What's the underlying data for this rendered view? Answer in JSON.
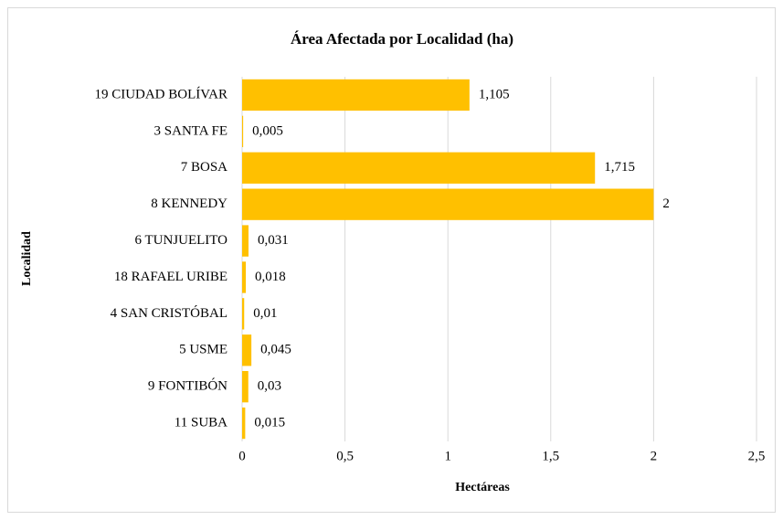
{
  "chart_data": {
    "type": "bar",
    "orientation": "horizontal",
    "title": "Área Afectada por Localidad (ha)",
    "x_label": "Hectáreas",
    "y_label": "Localidad",
    "categories": [
      "19 CIUDAD BOLÍVAR",
      "3 SANTA FE",
      "7 BOSA",
      "8 KENNEDY",
      "6 TUNJUELITO",
      "18 RAFAEL URIBE",
      "4 SAN CRISTÓBAL",
      "5 USME",
      "9 FONTIBÓN",
      "11 SUBA"
    ],
    "values": [
      1.105,
      0.005,
      1.715,
      2,
      0.031,
      0.018,
      0.01,
      0.045,
      0.03,
      0.015
    ],
    "value_labels": [
      "1,105",
      "0,005",
      "1,715",
      "2",
      "0,031",
      "0,018",
      "0,01",
      "0,045",
      "0,03",
      "0,015"
    ],
    "color": "#ffc000",
    "xlim": [
      0,
      2.5
    ],
    "xticks": [
      0,
      {
        "value": 0.5,
        "label": "0,5"
      },
      1,
      {
        "value": 1.5,
        "label": "1,5"
      },
      2,
      {
        "value": 2.5,
        "label": "2,5"
      }
    ],
    "grid": true
  }
}
